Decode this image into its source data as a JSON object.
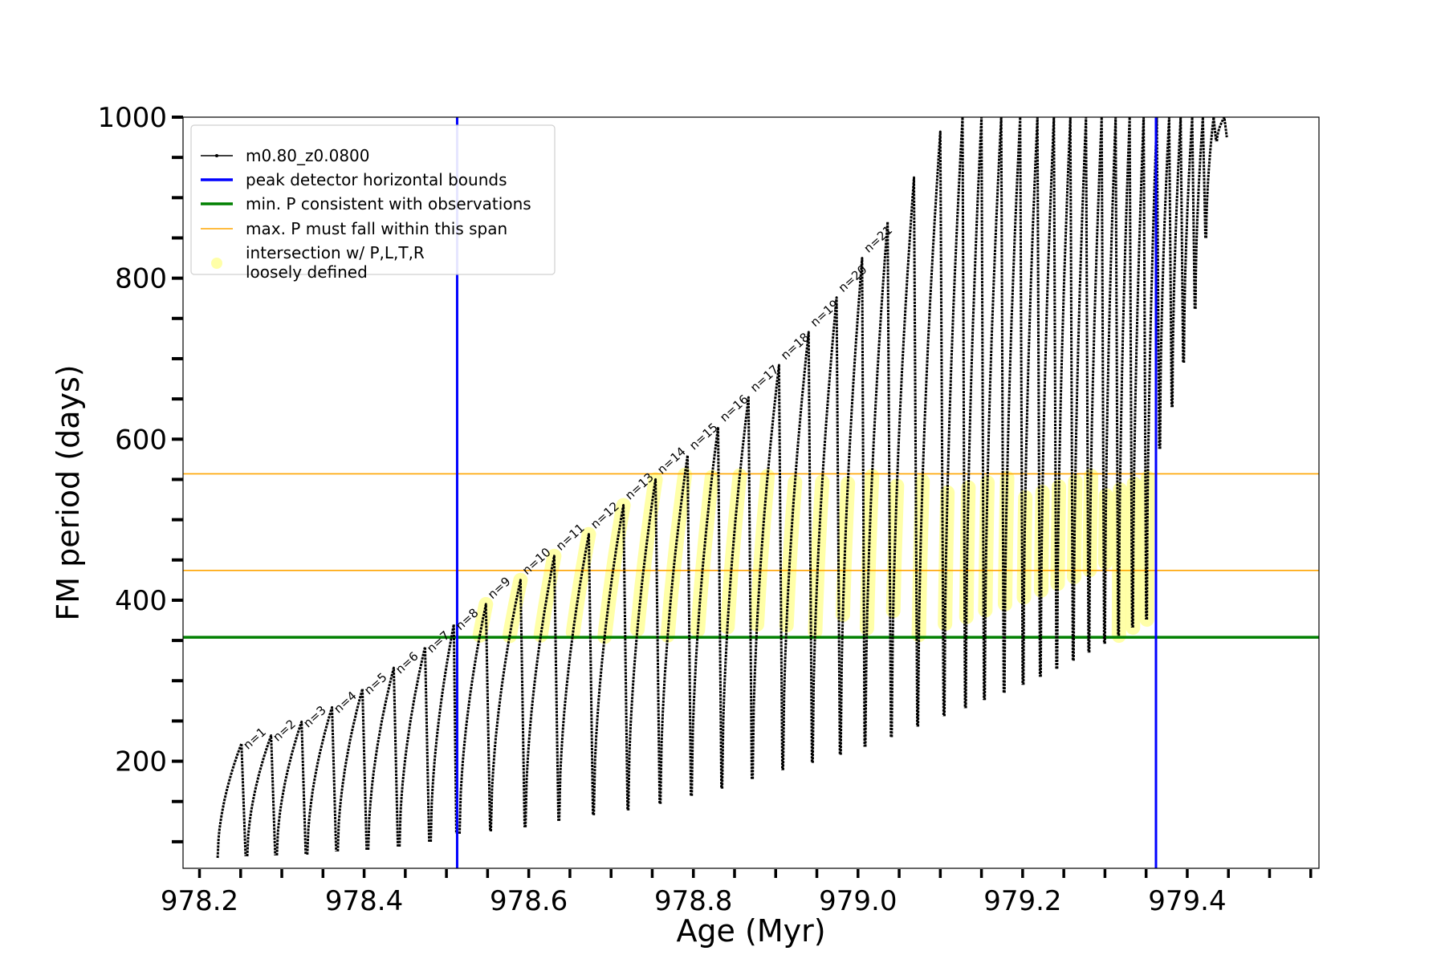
{
  "chart_data": {
    "type": "line",
    "xlabel": "Age (Myr)",
    "ylabel": "FM period (days)",
    "xlim": [
      978.18,
      979.56
    ],
    "ylim": [
      67,
      1000
    ],
    "x_ticks": [
      "978.2",
      "978.4",
      "978.6",
      "978.8",
      "979.0",
      "979.2",
      "979.4"
    ],
    "x_tick_values": [
      978.2,
      978.4,
      978.6,
      978.8,
      979.0,
      979.2,
      979.4
    ],
    "y_ticks": [
      "200",
      "400",
      "600",
      "800",
      "1000"
    ],
    "y_tick_values": [
      200,
      400,
      600,
      800,
      1000
    ],
    "legend_position": "upper-left",
    "legend": [
      {
        "label": "m0.80_z0.0800",
        "color": "#000000",
        "kind": "line-marker"
      },
      {
        "label": "peak detector horizontal bounds",
        "color": "#0000ff",
        "kind": "line"
      },
      {
        "label": "min. P consistent with observations",
        "color": "#008000",
        "kind": "line"
      },
      {
        "label": "max. P must fall within this span",
        "color": "#ffa500",
        "kind": "line"
      },
      {
        "label": "intersection w/ P,L,T,R",
        "label2": "loosely defined",
        "color": "#ffff99",
        "kind": "marker"
      }
    ],
    "vertical_lines": [
      {
        "x": 978.513,
        "color": "#0000ff"
      },
      {
        "x": 979.362,
        "color": "#0000ff"
      }
    ],
    "horizontal_lines": [
      {
        "y": 354,
        "color": "#008000"
      },
      {
        "y": 557,
        "color": "#ffa500"
      },
      {
        "y": 437,
        "color": "#ffa500"
      }
    ],
    "series": [
      {
        "name": "m0.80_z0.0800",
        "color": "#000000",
        "pulses": [
          {
            "n": "n=1",
            "x_start": 978.222,
            "x_peak": 978.251,
            "x_end": 978.256,
            "y_start": 80,
            "y_peak": 222
          },
          {
            "n": "n=2",
            "x_start": 978.258,
            "x_peak": 978.287,
            "x_end": 978.292,
            "y_start": 82,
            "y_peak": 232
          },
          {
            "n": "n=3",
            "x_start": 978.294,
            "x_peak": 978.324,
            "x_end": 978.329,
            "y_start": 83,
            "y_peak": 249
          },
          {
            "n": "n=4",
            "x_start": 978.331,
            "x_peak": 978.361,
            "x_end": 978.366,
            "y_start": 84,
            "y_peak": 267
          },
          {
            "n": "n=5",
            "x_start": 978.368,
            "x_peak": 978.398,
            "x_end": 978.403,
            "y_start": 88,
            "y_peak": 290
          },
          {
            "n": "n=6",
            "x_start": 978.405,
            "x_peak": 978.436,
            "x_end": 978.441,
            "y_start": 90,
            "y_peak": 316
          },
          {
            "n": "n=7",
            "x_start": 978.443,
            "x_peak": 978.474,
            "x_end": 978.479,
            "y_start": 94,
            "y_peak": 342
          },
          {
            "n": "n=8",
            "x_start": 978.481,
            "x_peak": 978.509,
            "x_end": 978.512,
            "y_start": 100,
            "y_peak": 370
          },
          {
            "n": "n=9",
            "x_start": 978.516,
            "x_peak": 978.548,
            "x_end": 978.553,
            "y_start": 110,
            "y_peak": 395
          },
          {
            "n": "n=10",
            "x_start": 978.554,
            "x_peak": 978.59,
            "x_end": 978.595,
            "y_start": 113,
            "y_peak": 425
          },
          {
            "n": "n=11",
            "x_start": 978.596,
            "x_peak": 978.631,
            "x_end": 978.636,
            "y_start": 118,
            "y_peak": 455
          },
          {
            "n": "n=12",
            "x_start": 978.637,
            "x_peak": 978.673,
            "x_end": 978.678,
            "y_start": 126,
            "y_peak": 482
          },
          {
            "n": "n=13",
            "x_start": 978.679,
            "x_peak": 978.715,
            "x_end": 978.72,
            "y_start": 133,
            "y_peak": 518
          },
          {
            "n": "n=14",
            "x_start": 978.721,
            "x_peak": 978.754,
            "x_end": 978.759,
            "y_start": 139,
            "y_peak": 550
          },
          {
            "n": "n=15",
            "x_start": 978.76,
            "x_peak": 978.793,
            "x_end": 978.797,
            "y_start": 147,
            "y_peak": 580
          },
          {
            "n": "n=16",
            "x_start": 978.798,
            "x_peak": 978.83,
            "x_end": 978.834,
            "y_start": 157,
            "y_peak": 615
          },
          {
            "n": "n=17",
            "x_start": 978.835,
            "x_peak": 978.867,
            "x_end": 978.871,
            "y_start": 166,
            "y_peak": 652
          },
          {
            "n": "n=18",
            "x_start": 978.872,
            "x_peak": 978.904,
            "x_end": 978.908,
            "y_start": 178,
            "y_peak": 692
          },
          {
            "n": "n=19",
            "x_start": 978.909,
            "x_peak": 978.94,
            "x_end": 978.944,
            "y_start": 189,
            "y_peak": 733
          },
          {
            "n": "n=20",
            "x_start": 978.945,
            "x_peak": 978.974,
            "x_end": 978.978,
            "y_start": 198,
            "y_peak": 776
          },
          {
            "n": "n=21",
            "x_start": 978.979,
            "x_peak": 979.005,
            "x_end": 979.008,
            "y_start": 208,
            "y_peak": 825
          },
          {
            "n": "",
            "x_start": 979.009,
            "x_peak": 979.036,
            "x_end": 979.04,
            "y_start": 218,
            "y_peak": 870
          },
          {
            "n": "",
            "x_start": 979.041,
            "x_peak": 979.068,
            "x_end": 979.072,
            "y_start": 230,
            "y_peak": 925
          },
          {
            "n": "",
            "x_start": 979.073,
            "x_peak": 979.1,
            "x_end": 979.104,
            "y_start": 243,
            "y_peak": 982
          },
          {
            "n": "",
            "x_start": 979.105,
            "x_peak": 979.127,
            "x_end": 979.13,
            "y_start": 256,
            "y_peak": 1000
          },
          {
            "n": "",
            "x_start": 979.131,
            "x_peak": 979.15,
            "x_end": 979.153,
            "y_start": 266,
            "y_peak": 1000
          },
          {
            "n": "",
            "x_start": 979.154,
            "x_peak": 979.174,
            "x_end": 979.177,
            "y_start": 276,
            "y_peak": 1000
          },
          {
            "n": "",
            "x_start": 979.178,
            "x_peak": 979.197,
            "x_end": 979.2,
            "y_start": 285,
            "y_peak": 1000
          },
          {
            "n": "",
            "x_start": 979.201,
            "x_peak": 979.218,
            "x_end": 979.221,
            "y_start": 295,
            "y_peak": 1000
          },
          {
            "n": "",
            "x_start": 979.222,
            "x_peak": 979.238,
            "x_end": 979.241,
            "y_start": 305,
            "y_peak": 1000
          },
          {
            "n": "",
            "x_start": 979.242,
            "x_peak": 979.258,
            "x_end": 979.261,
            "y_start": 315,
            "y_peak": 1000
          },
          {
            "n": "",
            "x_start": 979.262,
            "x_peak": 979.277,
            "x_end": 979.28,
            "y_start": 325,
            "y_peak": 1000
          },
          {
            "n": "",
            "x_start": 979.281,
            "x_peak": 979.296,
            "x_end": 979.299,
            "y_start": 335,
            "y_peak": 1000
          },
          {
            "n": "",
            "x_start": 979.3,
            "x_peak": 979.313,
            "x_end": 979.316,
            "y_start": 346,
            "y_peak": 1000
          },
          {
            "n": "",
            "x_start": 979.317,
            "x_peak": 979.33,
            "x_end": 979.333,
            "y_start": 356,
            "y_peak": 1000
          },
          {
            "n": "",
            "x_start": 979.334,
            "x_peak": 979.347,
            "x_end": 979.35,
            "y_start": 366,
            "y_peak": 1000
          },
          {
            "n": "",
            "x_start": 979.351,
            "x_peak": 979.363,
            "x_end": 979.366,
            "y_start": 376,
            "y_peak": 1000
          },
          {
            "n": "",
            "x_start": 979.367,
            "x_peak": 979.378,
            "x_end": 979.381,
            "y_start": 588,
            "y_peak": 1000
          },
          {
            "n": "",
            "x_start": 979.382,
            "x_peak": 979.392,
            "x_end": 979.395,
            "y_start": 640,
            "y_peak": 1000
          },
          {
            "n": "",
            "x_start": 979.396,
            "x_peak": 979.406,
            "x_end": 979.409,
            "y_start": 695,
            "y_peak": 1000
          },
          {
            "n": "",
            "x_start": 979.41,
            "x_peak": 979.419,
            "x_end": 979.422,
            "y_start": 762,
            "y_peak": 1000
          },
          {
            "n": "",
            "x_start": 979.423,
            "x_peak": 979.432,
            "x_end": 979.435,
            "y_start": 850,
            "y_peak": 1000
          },
          {
            "n": "",
            "x_start": 979.436,
            "x_peak": 979.445,
            "x_end": 979.448,
            "y_start": 970,
            "y_peak": 1000
          }
        ]
      }
    ]
  }
}
